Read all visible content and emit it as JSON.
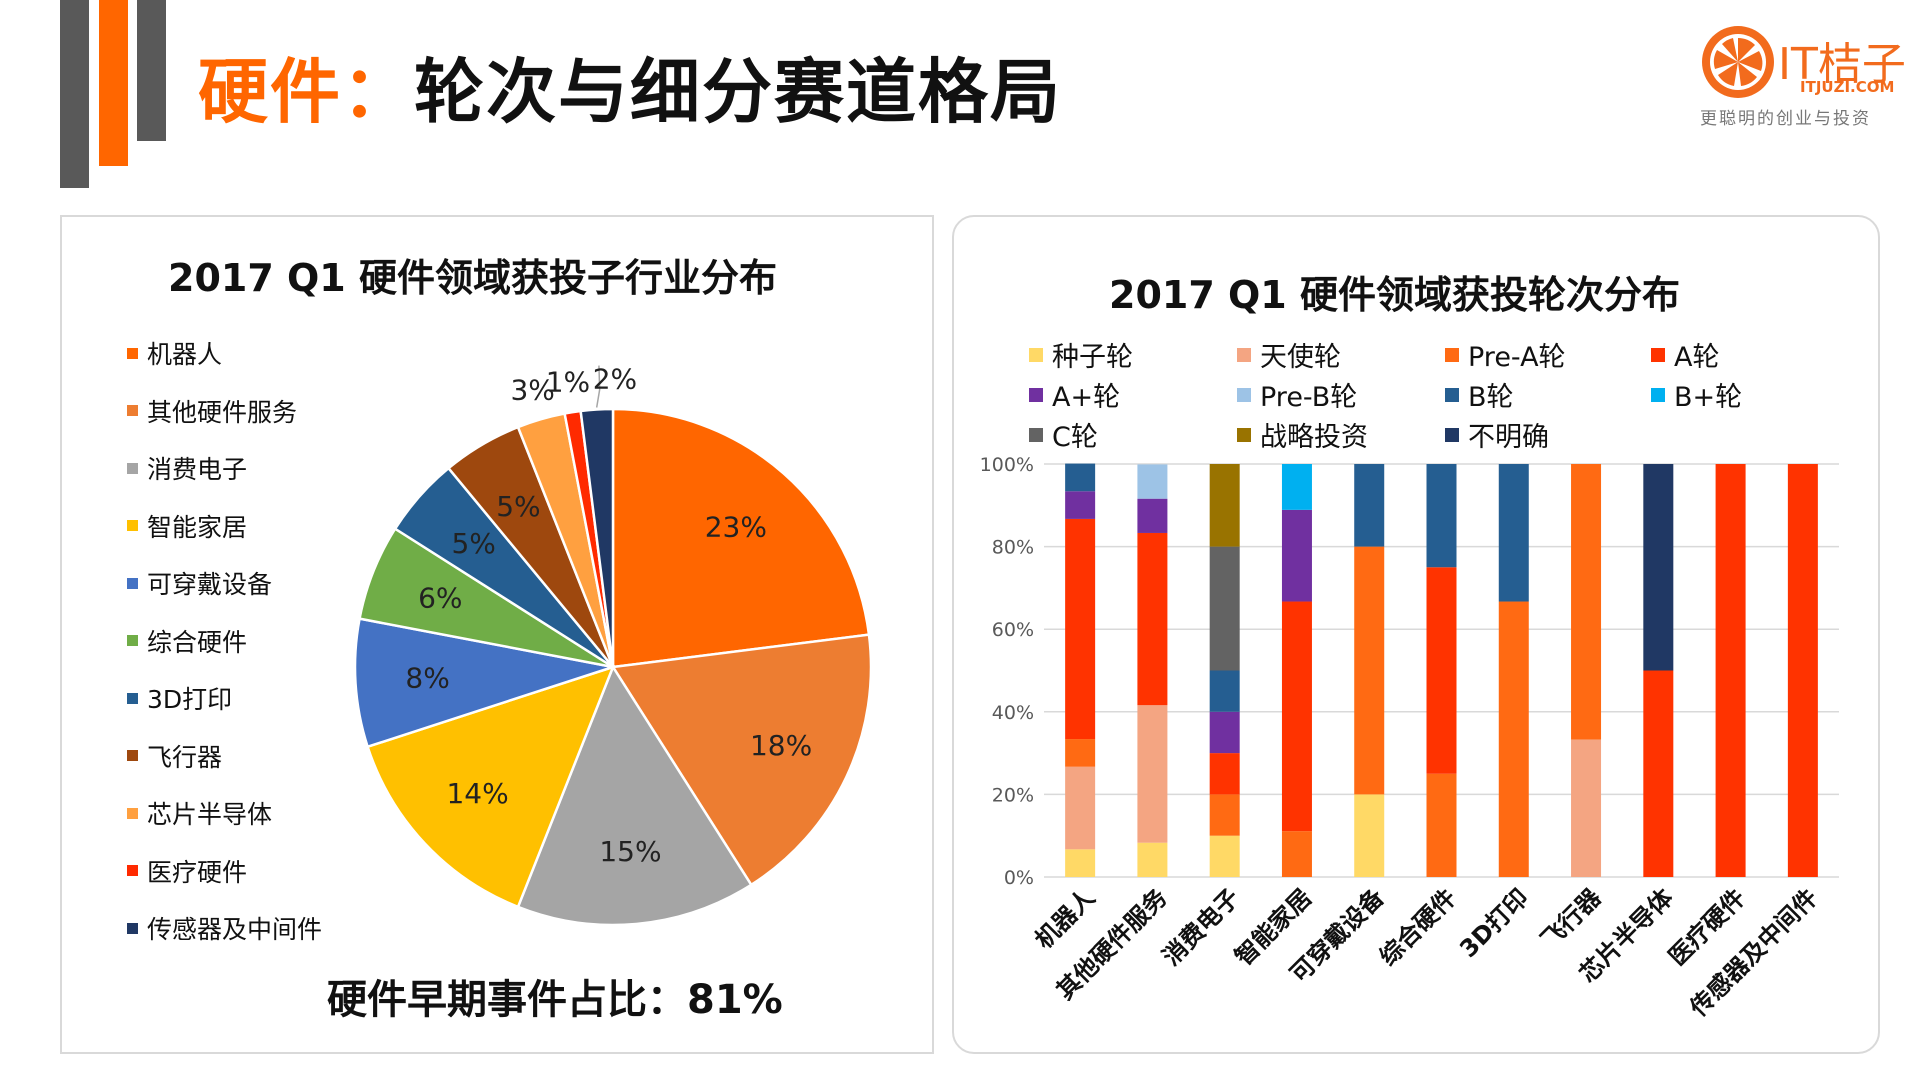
{
  "header": {
    "title_prefix": "硬件",
    "title_sep": "：",
    "title_rest": "轮次与细分赛道格局"
  },
  "logo": {
    "name": "IT桔子",
    "url": "ITJUZI.COM",
    "slogan": "更聪明的创业与投资",
    "color": "#f26b1d"
  },
  "colors": {
    "accent": "#ff6600",
    "gray": "#595959"
  },
  "pie": {
    "title": "2017 Q1 硬件领域获投子行业分布",
    "note": "硬件早期事件占比：81%",
    "chart_data": {
      "type": "pie",
      "title": "2017 Q1 硬件领域获投子行业分布",
      "legend_position": "left",
      "slices": [
        {
          "name": "机器人",
          "value": 23,
          "label": "23%",
          "color": "#ff6600"
        },
        {
          "name": "其他硬件服务",
          "value": 18,
          "label": "18%",
          "color": "#ed7d31"
        },
        {
          "name": "消费电子",
          "value": 15,
          "label": "15%",
          "color": "#a5a5a5"
        },
        {
          "name": "智能家居",
          "value": 14,
          "label": "14%",
          "color": "#ffc000"
        },
        {
          "name": "可穿戴设备",
          "value": 8,
          "label": "8%",
          "color": "#4472c4"
        },
        {
          "name": "综合硬件",
          "value": 6,
          "label": "6%",
          "color": "#70ad47"
        },
        {
          "name": "3D打印",
          "value": 5,
          "label": "5%",
          "color": "#255e91"
        },
        {
          "name": "飞行器",
          "value": 5,
          "label": "5%",
          "color": "#9e480e"
        },
        {
          "name": "芯片半导体",
          "value": 3,
          "label": "3%",
          "color": "#ffa040"
        },
        {
          "name": "医疗硬件",
          "value": 1,
          "label": "1%",
          "color": "#ff2a00"
        },
        {
          "name": "传感器及中间件",
          "value": 2,
          "label": "2%",
          "color": "#203864"
        }
      ]
    }
  },
  "bar": {
    "title": "2017 Q1 硬件领域获投轮次分布",
    "chart_data": {
      "type": "bar",
      "stacked": true,
      "percent": true,
      "title": "2017 Q1 硬件领域获投轮次分布",
      "legend_position": "top",
      "grid": true,
      "ylim": [
        0,
        100
      ],
      "yticks": [
        "0%",
        "20%",
        "40%",
        "60%",
        "80%",
        "100%"
      ],
      "categories": [
        "机器人",
        "其他硬件服务",
        "消费电子",
        "智能家居",
        "可穿戴设备",
        "综合硬件",
        "3D打印",
        "飞行器",
        "芯片半导体",
        "医疗硬件",
        "传感器及中间件"
      ],
      "series": [
        {
          "name": "种子轮",
          "color": "#ffd966",
          "values": [
            6.7,
            8.3,
            10,
            0,
            20,
            0,
            0,
            0,
            0,
            0,
            0
          ]
        },
        {
          "name": "天使轮",
          "color": "#f4a582",
          "values": [
            20,
            33.3,
            0,
            0,
            0,
            0,
            0,
            33.3,
            0,
            0,
            0
          ]
        },
        {
          "name": "Pre-A轮",
          "color": "#ff6a13",
          "values": [
            6.7,
            0,
            10,
            11.1,
            60,
            25,
            66.7,
            66.7,
            0,
            0,
            0
          ]
        },
        {
          "name": "A轮",
          "color": "#ff3300",
          "values": [
            53.3,
            41.7,
            10,
            55.6,
            0,
            50,
            0,
            0,
            50,
            100,
            100
          ]
        },
        {
          "name": "A+轮",
          "color": "#7030a0",
          "values": [
            6.7,
            8.3,
            10,
            22.2,
            0,
            0,
            0,
            0,
            0,
            0,
            0
          ]
        },
        {
          "name": "Pre-B轮",
          "color": "#9dc3e6",
          "values": [
            0,
            8.3,
            0,
            0,
            0,
            0,
            0,
            0,
            0,
            0,
            0
          ]
        },
        {
          "name": "B轮",
          "color": "#255e91",
          "values": [
            6.7,
            0,
            10,
            0,
            20,
            25,
            33.3,
            0,
            0,
            0,
            0
          ]
        },
        {
          "name": "B+轮",
          "color": "#00b0f0",
          "values": [
            0,
            0,
            0,
            11.1,
            0,
            0,
            0,
            0,
            0,
            0,
            0
          ]
        },
        {
          "name": "C轮",
          "color": "#636363",
          "values": [
            0,
            0,
            30,
            0,
            0,
            0,
            0,
            0,
            0,
            0,
            0
          ]
        },
        {
          "name": "战略投资",
          "color": "#997300",
          "values": [
            0,
            0,
            20,
            0,
            0,
            0,
            0,
            0,
            0,
            0,
            0
          ]
        },
        {
          "name": "不明确",
          "color": "#203864",
          "values": [
            0,
            0,
            0,
            0,
            0,
            0,
            0,
            0,
            50,
            0,
            0
          ]
        }
      ]
    }
  }
}
